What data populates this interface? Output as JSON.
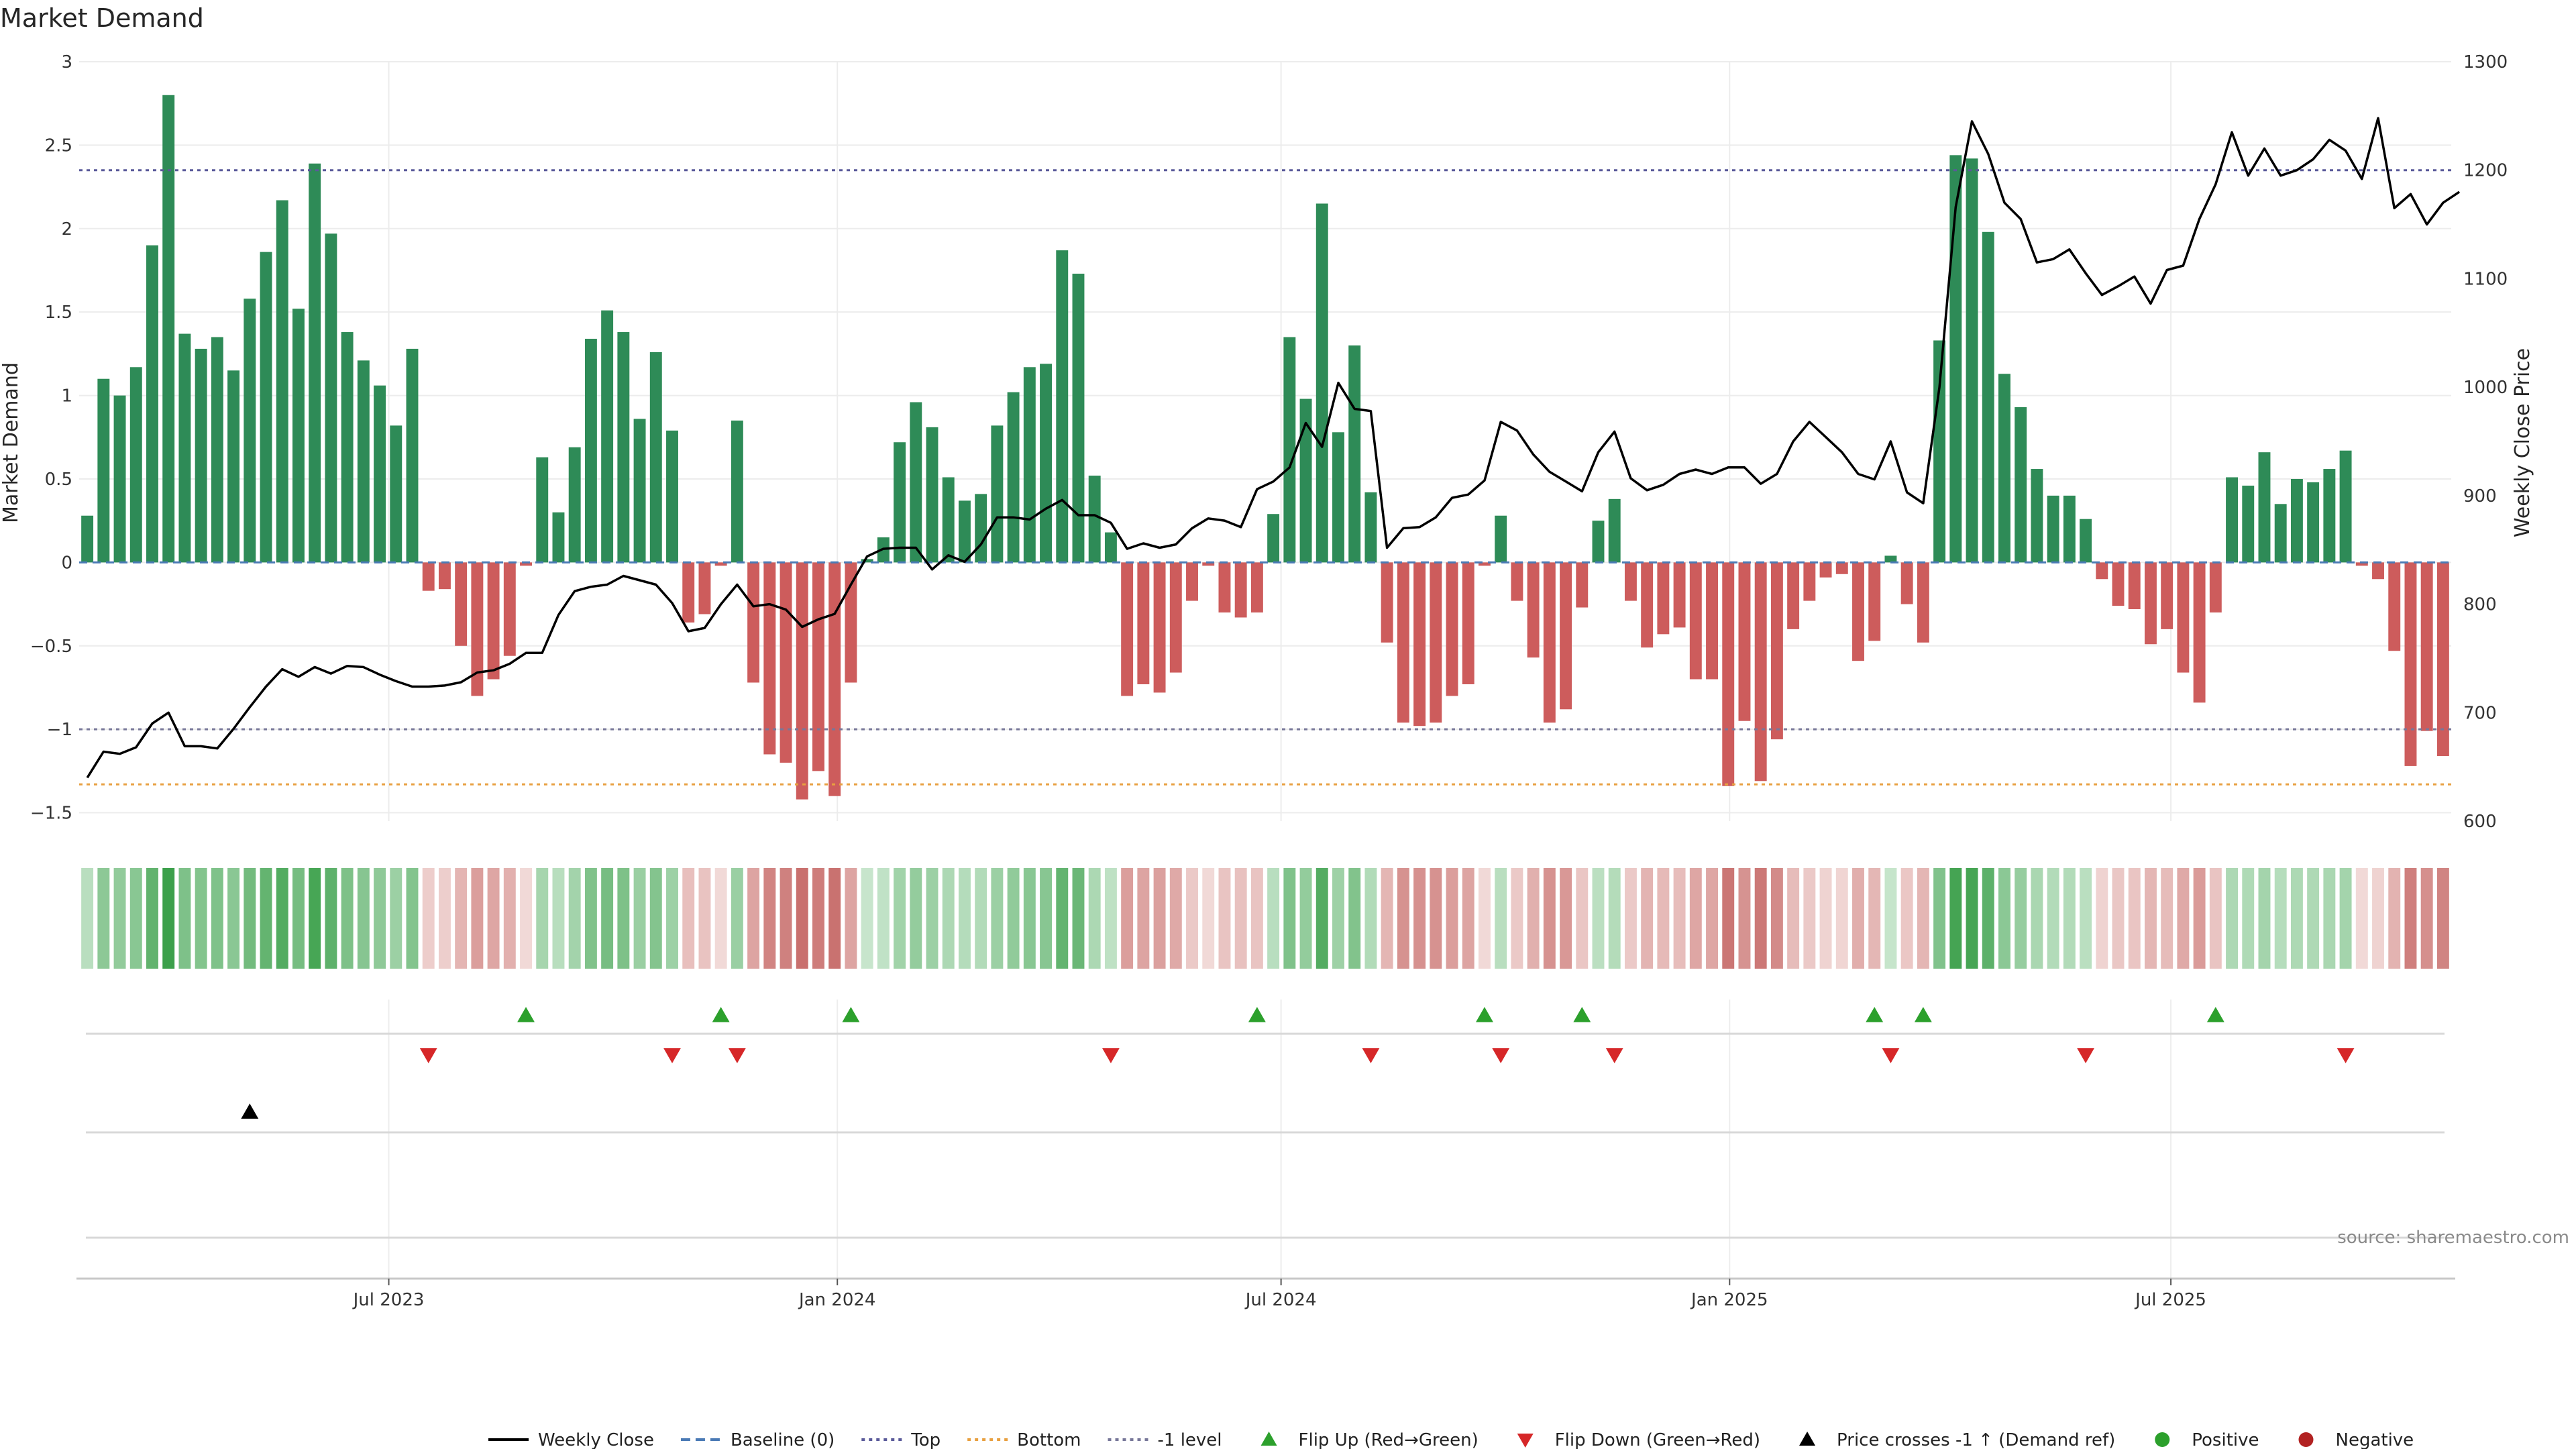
{
  "chart_data": {
    "type": "bar",
    "title": "Market Demand",
    "ylabel": "Market Demand",
    "y2label": "Weekly Close Price",
    "ylim": [
      -1.55,
      3.0
    ],
    "y2lim": [
      600,
      1300
    ],
    "yticks": [
      3,
      2.5,
      2,
      1.5,
      1,
      0.5,
      0,
      -0.5,
      -1,
      -1.5
    ],
    "yticklabels": [
      "3",
      "2.5",
      "2",
      "1.5",
      "1",
      "0.5",
      "0",
      "−0.5",
      "−1",
      "−1.5"
    ],
    "y2ticks": [
      1300,
      1200,
      1100,
      1000,
      900,
      800,
      700,
      600
    ],
    "x_start": "2023-02-24",
    "x_end": "2025-10-24",
    "xticks": [
      "2023-07-01",
      "2024-01-01",
      "2024-07-01",
      "2025-01-01",
      "2025-07-01"
    ],
    "xticklabels": [
      "Jul 2023",
      "Jan 2024",
      "Jul 2024",
      "Jan 2025",
      "Jul 2025"
    ],
    "reference_lines": {
      "baseline": 0,
      "top": 2.35,
      "bottom": -1.33,
      "minus_one": -1
    },
    "colors": {
      "positive": "#2e8b57",
      "negative": "#cd5c5c",
      "price": "#000000",
      "top": "#5a5a9a",
      "bottom": "#e8a040",
      "minus_one": "#777799",
      "baseline": "#4a7ab5",
      "flip_up": "#2ca02c",
      "flip_down": "#d62728",
      "cross": "#000000"
    },
    "demand": [
      0.28,
      1.1,
      1.0,
      1.17,
      1.9,
      2.8,
      1.37,
      1.28,
      1.35,
      1.15,
      1.58,
      1.86,
      2.17,
      1.52,
      2.39,
      1.97,
      1.38,
      1.21,
      1.06,
      0.82,
      1.28,
      -0.17,
      -0.16,
      -0.5,
      -0.8,
      -0.7,
      -0.56,
      -0.02,
      0.63,
      0.3,
      0.69,
      1.34,
      1.51,
      1.38,
      0.86,
      1.26,
      0.79,
      -0.36,
      -0.31,
      -0.02,
      0.85,
      -0.72,
      -1.15,
      -1.2,
      -1.42,
      -1.25,
      -1.4,
      -0.72,
      0.02,
      0.15,
      0.72,
      0.96,
      0.81,
      0.51,
      0.37,
      0.41,
      0.82,
      1.02,
      1.17,
      1.19,
      1.87,
      1.73,
      0.52,
      0.18,
      -0.8,
      -0.73,
      -0.78,
      -0.66,
      -0.23,
      -0.02,
      -0.3,
      -0.33,
      -0.3,
      0.29,
      1.35,
      0.98,
      2.15,
      0.78,
      1.3,
      0.42,
      -0.48,
      -0.96,
      -0.98,
      -0.96,
      -0.8,
      -0.73,
      -0.02,
      0.28,
      -0.23,
      -0.57,
      -0.96,
      -0.88,
      -0.27,
      0.25,
      0.38,
      -0.23,
      -0.51,
      -0.43,
      -0.39,
      -0.7,
      -0.7,
      -1.34,
      -0.95,
      -1.31,
      -1.06,
      -0.4,
      -0.23,
      -0.09,
      -0.07,
      -0.59,
      -0.47,
      0.04,
      -0.25,
      -0.48,
      1.33,
      2.44,
      2.42,
      1.98,
      1.13,
      0.93,
      0.56,
      0.4,
      0.4,
      0.26,
      -0.1,
      -0.26,
      -0.28,
      -0.49,
      -0.4,
      -0.66,
      -0.84,
      -0.3,
      0.51,
      0.46,
      0.66,
      0.35,
      0.5,
      0.48,
      0.56,
      0.67,
      -0.02,
      -0.1,
      -0.53,
      -1.22,
      -1.01,
      -1.16
    ],
    "price": [
      640,
      664,
      662,
      668,
      690,
      700,
      669,
      669,
      667,
      685,
      705,
      724,
      740,
      733,
      742,
      736,
      743,
      742,
      735,
      729,
      724,
      724,
      725,
      728,
      737,
      739,
      745,
      755,
      755,
      790,
      812,
      816,
      818,
      826,
      822,
      818,
      801,
      775,
      778,
      800,
      818,
      798,
      800,
      795,
      779,
      786,
      791,
      818,
      844,
      851,
      852,
      852,
      832,
      845,
      839,
      855,
      880,
      880,
      878,
      888,
      896,
      882,
      882,
      875,
      851,
      856,
      852,
      855,
      870,
      879,
      877,
      871,
      906,
      913,
      926,
      967,
      945,
      1004,
      980,
      978,
      852,
      870,
      871,
      880,
      898,
      901,
      914,
      968,
      960,
      938,
      922,
      913,
      904,
      940,
      959,
      916,
      905,
      910,
      920,
      924,
      920,
      926,
      926,
      911,
      920,
      950,
      968,
      954,
      940,
      920,
      915,
      950,
      903,
      893,
      1000,
      1166,
      1245,
      1215,
      1170,
      1155,
      1115,
      1118,
      1127,
      1105,
      1085,
      1093,
      1102,
      1077,
      1108,
      1112,
      1155,
      1187,
      1235,
      1195,
      1220,
      1195,
      1200,
      1210,
      1228,
      1218,
      1192,
      1248,
      1165,
      1178,
      1150,
      1170,
      1180
    ],
    "flip_up_weeks": [
      27,
      39,
      47,
      72,
      86,
      92,
      110,
      113,
      131
    ],
    "flip_down_weeks": [
      21,
      36,
      40,
      63,
      79,
      87,
      94,
      111,
      123,
      139
    ],
    "cross_weeks": [
      10
    ],
    "legend": [
      {
        "label": "Weekly Close",
        "kind": "line",
        "color": "#000000"
      },
      {
        "label": "Baseline (0)",
        "kind": "dashed",
        "color": "#4a7ab5"
      },
      {
        "label": "Top",
        "kind": "dotted",
        "color": "#5a5a9a"
      },
      {
        "label": "Bottom",
        "kind": "dotted",
        "color": "#e8a040"
      },
      {
        "label": "-1 level",
        "kind": "dotted",
        "color": "#777799"
      },
      {
        "label": "Flip Up (Red→Green)",
        "kind": "tri-up",
        "color": "#2ca02c"
      },
      {
        "label": "Flip Down (Green→Red)",
        "kind": "tri-down",
        "color": "#d62728"
      },
      {
        "label": "Price crosses -1 ↑ (Demand ref)",
        "kind": "tri-up",
        "color": "#000000"
      },
      {
        "label": "Positive",
        "kind": "dot",
        "color": "#2ca02c"
      },
      {
        "label": "Negative",
        "kind": "dot",
        "color": "#b22222"
      }
    ],
    "source": "source: sharemaestro.com"
  }
}
